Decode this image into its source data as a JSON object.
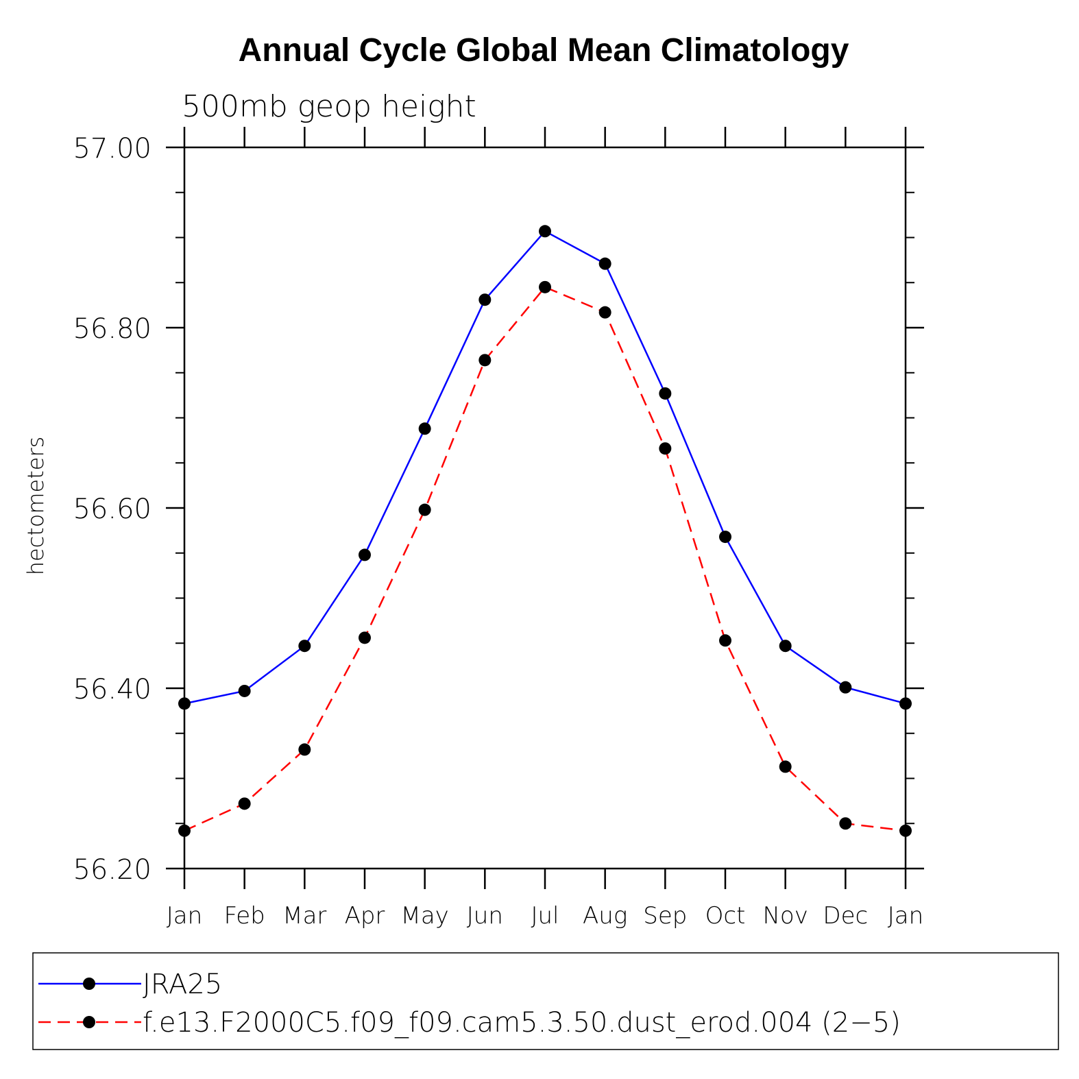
{
  "chart_data": {
    "type": "line",
    "title": "Annual Cycle Global Mean Climatology",
    "subtitle": "500mb geop height",
    "ylabel": "hectometers",
    "xlabel": "",
    "categories": [
      "Jan",
      "Feb",
      "Mar",
      "Apr",
      "May",
      "Jun",
      "Jul",
      "Aug",
      "Sep",
      "Oct",
      "Nov",
      "Dec",
      "Jan"
    ],
    "ylim": [
      56.2,
      57.0
    ],
    "yticks": [
      "57.00",
      "56.80",
      "56.60",
      "56.40",
      "56.20"
    ],
    "ytick_values": [
      57.0,
      56.8,
      56.6,
      56.4,
      56.2
    ],
    "series": [
      {
        "name": "JRA25",
        "color": "#0000ff",
        "style": "solid",
        "values": [
          56.383,
          56.397,
          56.447,
          56.548,
          56.688,
          56.831,
          56.907,
          56.871,
          56.727,
          56.568,
          56.447,
          56.401,
          56.383
        ]
      },
      {
        "name": "f.e13.F2000C5.f09_f09.cam5.3.50.dust_erod.004 (2−5)",
        "color": "#ff0000",
        "style": "dashed",
        "values": [
          56.242,
          56.272,
          56.332,
          56.456,
          56.598,
          56.764,
          56.845,
          56.817,
          56.666,
          56.453,
          56.313,
          56.25,
          56.242
        ]
      }
    ],
    "legend_position": "bottom"
  }
}
